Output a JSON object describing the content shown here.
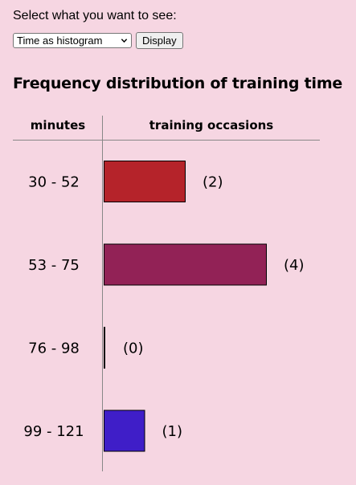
{
  "controls": {
    "prompt": "Select what you want to see:",
    "selected_view": "Time as histogram",
    "display_label": "Display"
  },
  "chart_data": {
    "type": "bar",
    "orientation": "horizontal",
    "title": "Frequency distribution of training time",
    "category_header": "minutes",
    "value_header": "training occasions",
    "categories": [
      "30 - 52",
      "53 - 75",
      "76 - 98",
      "99 - 121"
    ],
    "values": [
      2,
      4,
      0,
      1
    ],
    "value_labels": [
      "(2)",
      "(4)",
      "(0)",
      "(1)"
    ],
    "colors": [
      "#b5232a",
      "#922256",
      "#000000",
      "#3f1ec8"
    ],
    "xlim": [
      0,
      4
    ]
  }
}
